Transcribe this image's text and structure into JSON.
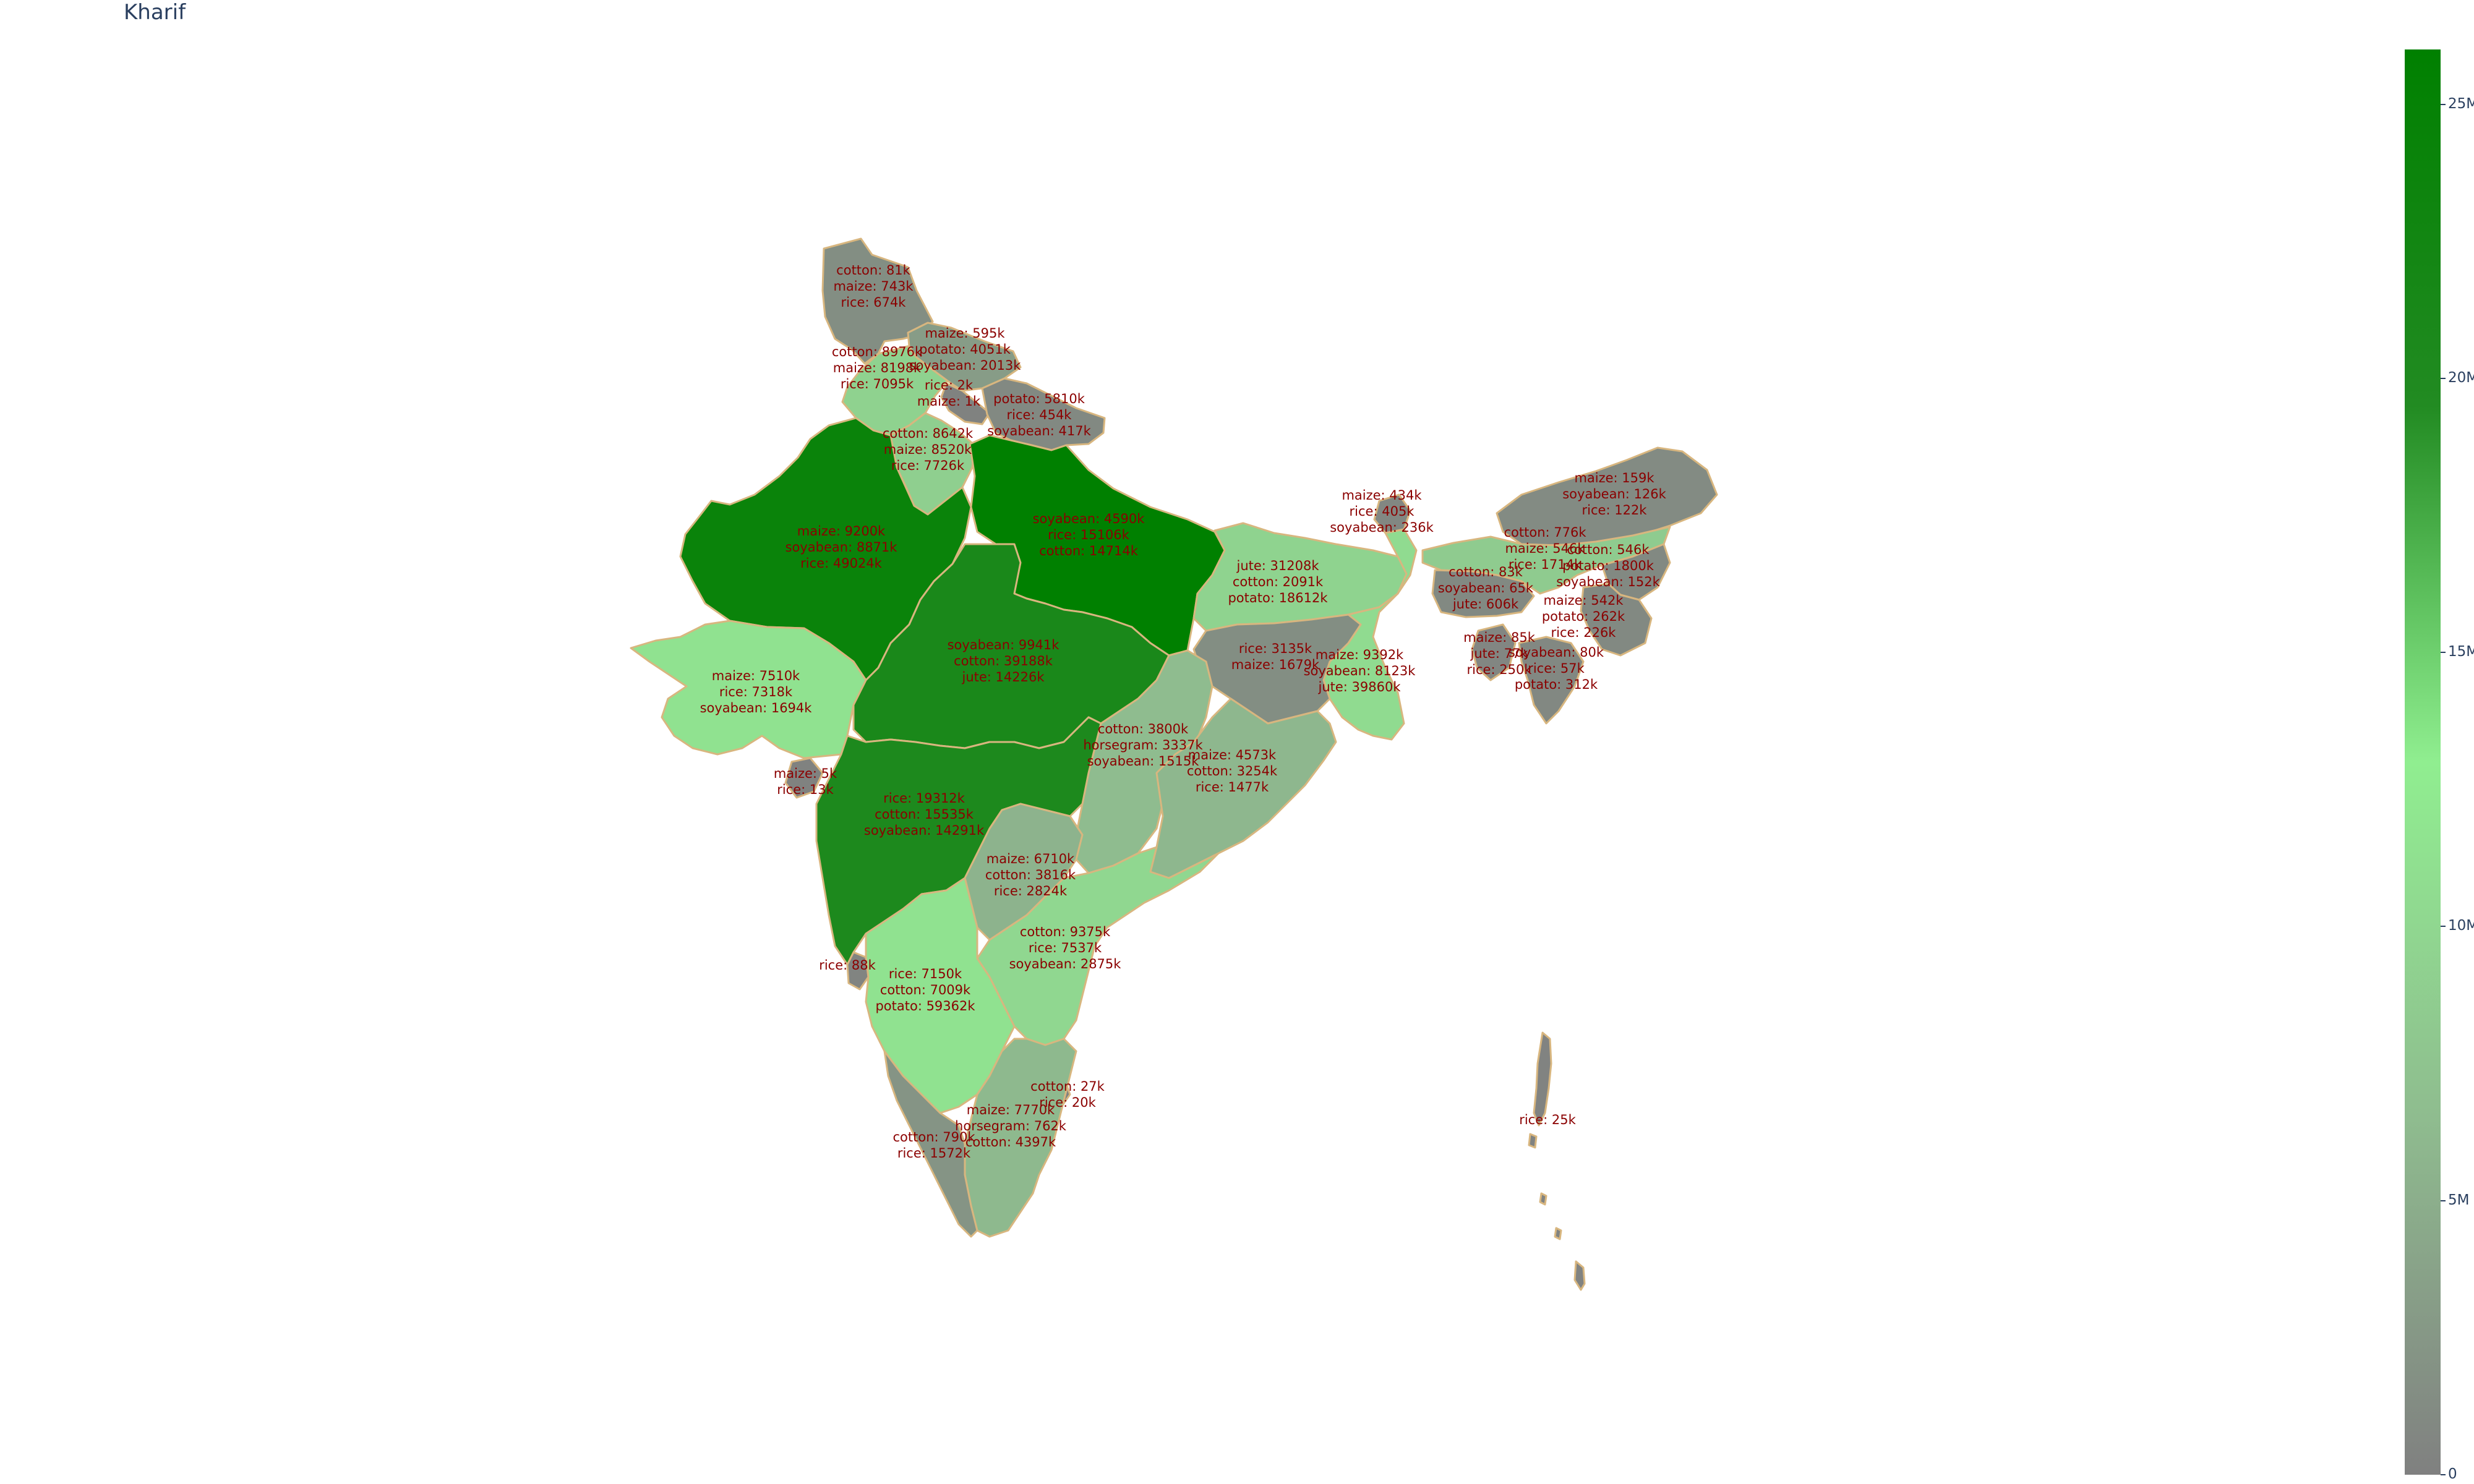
{
  "title": "Kharif",
  "colorbar": {
    "ticks": [
      {
        "value": 0,
        "label": "0"
      },
      {
        "value": 5,
        "label": "5M"
      },
      {
        "value": 10,
        "label": "10M"
      },
      {
        "value": 15,
        "label": "15M"
      },
      {
        "value": 20,
        "label": "20M"
      },
      {
        "value": 25,
        "label": "25M"
      }
    ],
    "max_millions": 26,
    "colors": [
      "#808080",
      "#8fbc8f",
      "#90ee90",
      "#228b22",
      "#008000"
    ]
  },
  "regions": [
    {
      "id": "jammu-kashmir",
      "level": 1.5,
      "lines": [
        "cotton: 81k",
        "maize: 743k",
        "rice: 674k"
      ]
    },
    {
      "id": "himachal",
      "level": 3.0,
      "lines": [
        "maize: 595k",
        "potato: 4051k",
        "soyabean: 2013k"
      ]
    },
    {
      "id": "punjab",
      "level": 9.3,
      "lines": [
        "cotton: 8976k",
        "maize: 8198k",
        "rice: 7095k"
      ]
    },
    {
      "id": "chandigarh",
      "level": 0.2,
      "lines": [
        "rice: 2k",
        "maize: 1k"
      ]
    },
    {
      "id": "uttarakhand",
      "level": 1.0,
      "lines": [
        "potato: 5810k",
        "rice: 454k",
        "soyabean: 417k"
      ]
    },
    {
      "id": "haryana",
      "level": 9.0,
      "lines": [
        "cotton: 8642k",
        "maize: 8520k",
        "rice: 7726k"
      ]
    },
    {
      "id": "rajasthan",
      "level": 24.0,
      "lines": [
        "maize: 9200k",
        "soyabean: 8871k",
        "rice: 49024k"
      ]
    },
    {
      "id": "uttar-pradesh",
      "level": 26.0,
      "lines": [
        "soyabean: 4590k",
        "rice: 15106k",
        "cotton: 14714k"
      ]
    },
    {
      "id": "bihar",
      "level": 9.5,
      "lines": [
        "jute: 31208k",
        "cotton: 2091k",
        "potato: 18612k"
      ]
    },
    {
      "id": "sikkim",
      "level": 0.8,
      "lines": [
        "maize: 434k",
        "rice: 405k",
        "soyabean: 236k"
      ]
    },
    {
      "id": "arunachal",
      "level": 1.2,
      "lines": [
        "maize: 159k",
        "soyabean: 126k",
        "rice: 122k"
      ]
    },
    {
      "id": "assam",
      "level": 8.5,
      "lines": [
        "cotton: 776k",
        "maize: 546k",
        "rice: 1714k"
      ]
    },
    {
      "id": "nagaland",
      "level": 1.0,
      "lines": [
        "cotton: 546k",
        "potato: 1800k",
        "soyabean: 152k"
      ]
    },
    {
      "id": "meghalaya",
      "level": 1.0,
      "lines": [
        "cotton: 83k",
        "soyabean: 65k",
        "jute: 606k"
      ]
    },
    {
      "id": "manipur",
      "level": 1.0,
      "lines": [
        "maize: 542k",
        "potato: 262k",
        "rice: 226k"
      ]
    },
    {
      "id": "tripura",
      "level": 0.7,
      "lines": [
        "maize: 85k",
        "jute: 77k",
        "rice: 250k"
      ]
    },
    {
      "id": "mizoram",
      "level": 0.9,
      "lines": [
        "soyabean: 80k",
        "rice: 57k",
        "potato: 312k"
      ]
    },
    {
      "id": "west-bengal",
      "level": 10.5,
      "lines": [
        "maize: 9392k",
        "soyabean: 8123k",
        "jute: 39860k"
      ]
    },
    {
      "id": "jharkhand",
      "level": 1.5,
      "lines": [
        "rice: 3135k",
        "maize: 1679k"
      ]
    },
    {
      "id": "madhya-pradesh",
      "level": 21.0,
      "lines": [
        "soyabean: 9941k",
        "cotton: 39188k",
        "jute: 14226k"
      ]
    },
    {
      "id": "gujarat",
      "level": 11.5,
      "lines": [
        "maize: 7510k",
        "rice: 7318k",
        "soyabean: 1694k"
      ]
    },
    {
      "id": "dadra-daman",
      "level": 0.2,
      "lines": [
        "maize: 5k",
        "rice: 13k"
      ]
    },
    {
      "id": "chhattisgarh",
      "level": 6.5,
      "lines": [
        "cotton: 3800k",
        "horsegram: 3337k",
        "soyabean: 1515k"
      ]
    },
    {
      "id": "odisha",
      "level": 6.0,
      "lines": [
        "maize: 4573k",
        "cotton: 3254k",
        "rice: 1477k"
      ]
    },
    {
      "id": "maharashtra",
      "level": 20.5,
      "lines": [
        "rice: 19312k",
        "cotton: 15535k",
        "soyabean: 14291k"
      ]
    },
    {
      "id": "telangana",
      "level": 5.5,
      "lines": [
        "maize: 6710k",
        "cotton: 3816k",
        "rice: 2824k"
      ]
    },
    {
      "id": "andhra-pradesh",
      "level": 10.0,
      "lines": [
        "cotton: 9375k",
        "rice: 7537k",
        "soyabean: 2875k"
      ]
    },
    {
      "id": "goa",
      "level": 0.4,
      "lines": [
        "rice: 88k"
      ]
    },
    {
      "id": "karnataka",
      "level": 11.5,
      "lines": [
        "rice: 7150k",
        "cotton: 7009k",
        "potato: 59362k"
      ]
    },
    {
      "id": "puducherry",
      "level": 0.2,
      "lines": [
        "cotton: 27k",
        "rice: 20k"
      ]
    },
    {
      "id": "tamil-nadu",
      "level": 6.2,
      "lines": [
        "maize: 7770k",
        "horsegram: 762k",
        "cotton: 4397k"
      ]
    },
    {
      "id": "kerala",
      "level": 2.2,
      "lines": [
        "cotton: 790k",
        "rice: 1572k"
      ]
    },
    {
      "id": "andaman-nicobar",
      "level": 0.3,
      "lines": [
        "rice: 25k"
      ]
    }
  ]
}
